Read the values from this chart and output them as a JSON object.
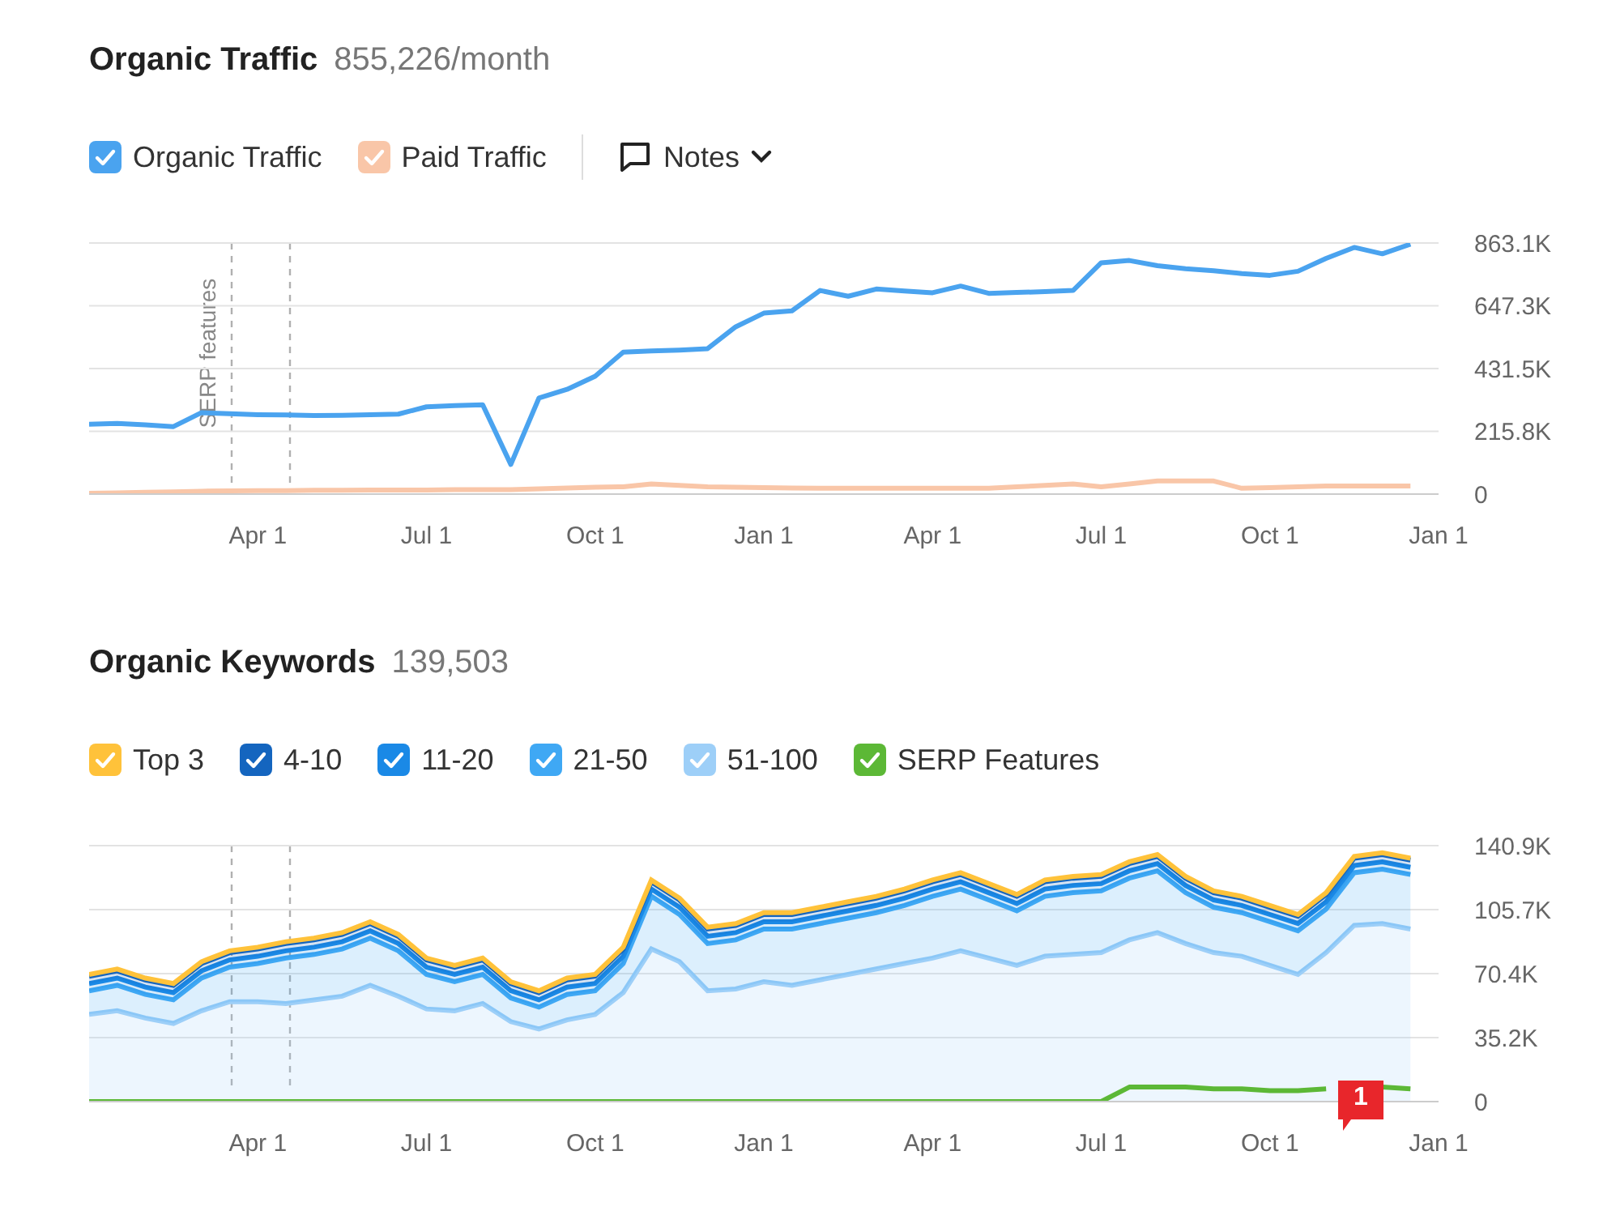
{
  "chart_data": [
    {
      "type": "line",
      "title": "Organic Traffic",
      "subtitle": "855,226/month",
      "legend": "top left",
      "grid": "y",
      "categories": [
        null,
        null,
        null,
        null,
        null,
        null,
        "Apr 1",
        null,
        null,
        null,
        null,
        null,
        "Jul 1",
        null,
        null,
        null,
        null,
        null,
        "Oct 1",
        null,
        null,
        null,
        null,
        null,
        "Jan 1",
        null,
        null,
        null,
        null,
        null,
        "Apr 1",
        null,
        null,
        null,
        null,
        null,
        "Jul 1",
        null,
        null,
        null,
        null,
        null,
        "Oct 1",
        null,
        null,
        null,
        null,
        null,
        "Jan 1"
      ],
      "ylim": [
        0,
        863100
      ],
      "yticks": [
        {
          "value": 0,
          "label": "0"
        },
        {
          "value": 215800,
          "label": "215.8K"
        },
        {
          "value": 431500,
          "label": "431.5K"
        },
        {
          "value": 647300,
          "label": "647.3K"
        },
        {
          "value": 863100,
          "label": "863.1K"
        }
      ],
      "annotations": [
        "SERP features",
        "Notes"
      ],
      "series": [
        {
          "name": "Organic Traffic",
          "color": "#4aa3ef",
          "values": [
            240000,
            243000,
            238000,
            232000,
            280000,
            276000,
            273000,
            272000,
            270000,
            271000,
            273000,
            275000,
            300000,
            304000,
            307000,
            102000,
            330000,
            360000,
            405000,
            488000,
            492000,
            495000,
            500000,
            575000,
            622000,
            630000,
            700000,
            680000,
            705000,
            698000,
            692000,
            715000,
            690000,
            693000,
            696000,
            700000,
            795000,
            803000,
            785000,
            775000,
            768000,
            758000,
            752000,
            766000,
            810000,
            848000,
            826000,
            859000,
            null
          ]
        },
        {
          "name": "Paid Traffic",
          "color": "#f9c6a8",
          "values": [
            3000,
            4000,
            6000,
            8000,
            10000,
            11000,
            12000,
            12000,
            13000,
            13000,
            14000,
            14000,
            14000,
            15000,
            15000,
            15000,
            18000,
            21000,
            24000,
            25000,
            35000,
            30000,
            25000,
            24000,
            22000,
            21000,
            20000,
            20000,
            20000,
            20000,
            20000,
            20000,
            20000,
            25000,
            30000,
            35000,
            25000,
            35000,
            45000,
            45000,
            45000,
            20000,
            22000,
            25000,
            28000,
            28000,
            28000,
            28000,
            null
          ]
        }
      ]
    },
    {
      "type": "area",
      "title": "Organic Keywords",
      "subtitle": "139,503",
      "legend": "top left",
      "grid": "y",
      "stacked": true,
      "categories": [
        null,
        null,
        null,
        null,
        null,
        null,
        "Apr 1",
        null,
        null,
        null,
        null,
        null,
        "Jul 1",
        null,
        null,
        null,
        null,
        null,
        "Oct 1",
        null,
        null,
        null,
        null,
        null,
        "Jan 1",
        null,
        null,
        null,
        null,
        null,
        "Apr 1",
        null,
        null,
        null,
        null,
        null,
        "Jul 1",
        null,
        null,
        null,
        null,
        null,
        "Oct 1",
        null,
        null,
        null,
        null,
        null,
        "Jan 1"
      ],
      "ylim": [
        0,
        140900
      ],
      "yticks": [
        {
          "value": 0,
          "label": "0"
        },
        {
          "value": 35200,
          "label": "35.2K"
        },
        {
          "value": 70400,
          "label": "70.4K"
        },
        {
          "value": 105700,
          "label": "105.7K"
        },
        {
          "value": 140900,
          "label": "140.9K"
        }
      ],
      "annotations": [
        "1"
      ],
      "series": [
        {
          "name": "51-100",
          "color": "#9dcff8",
          "values": [
            48000,
            50000,
            46000,
            43000,
            50000,
            55000,
            55000,
            54000,
            56000,
            58000,
            64000,
            58000,
            51000,
            50000,
            54000,
            44000,
            40000,
            45000,
            48000,
            60000,
            84000,
            77000,
            61000,
            62000,
            66000,
            64000,
            67000,
            70000,
            73000,
            76000,
            79000,
            83000,
            79000,
            75000,
            80000,
            81000,
            82000,
            89000,
            93000,
            87000,
            82000,
            80000,
            75000,
            70000,
            82000,
            97000,
            98000,
            95000,
            null
          ]
        },
        {
          "name": "21-50",
          "color": "#3fa8f4",
          "values": [
            13000,
            14000,
            13000,
            13000,
            18000,
            19000,
            21000,
            25000,
            25000,
            26000,
            26000,
            25000,
            19000,
            16000,
            16000,
            13000,
            12000,
            14000,
            13000,
            16000,
            29000,
            26000,
            26000,
            27000,
            29000,
            31000,
            31000,
            31000,
            31000,
            32000,
            34000,
            34000,
            32000,
            30000,
            33000,
            34000,
            34000,
            34000,
            34000,
            28000,
            25000,
            24000,
            24000,
            24000,
            24000,
            29000,
            30000,
            30000,
            null
          ]
        },
        {
          "name": "11-20",
          "color": "#1a89e6",
          "values": [
            4000,
            4000,
            4000,
            4000,
            4000,
            4000,
            4000,
            4000,
            4000,
            4000,
            4000,
            4000,
            4000,
            4000,
            4000,
            4000,
            4000,
            4000,
            4000,
            4000,
            4000,
            4000,
            4000,
            4000,
            4000,
            4000,
            4000,
            4000,
            4000,
            4000,
            4000,
            4000,
            4000,
            4000,
            4000,
            4000,
            4000,
            4000,
            4000,
            4000,
            4000,
            4000,
            4000,
            4000,
            4000,
            4000,
            4000,
            4000,
            null
          ]
        },
        {
          "name": "4-10",
          "color": "#1465bf",
          "values": [
            4000,
            4000,
            4000,
            4000,
            4000,
            4000,
            4000,
            4000,
            4000,
            4000,
            4000,
            4000,
            4000,
            4000,
            4000,
            4000,
            4000,
            4000,
            4000,
            4000,
            4000,
            4000,
            4000,
            4000,
            4000,
            4000,
            4000,
            4000,
            4000,
            4000,
            4000,
            4000,
            4000,
            4000,
            4000,
            4000,
            4000,
            4000,
            4000,
            4000,
            4000,
            4000,
            4000,
            4000,
            4000,
            4000,
            4000,
            4000,
            null
          ]
        },
        {
          "name": "Top 3",
          "color": "#ffc23a",
          "values": [
            1000,
            1000,
            1000,
            1000,
            1000,
            1000,
            1000,
            1000,
            1000,
            1000,
            1000,
            1000,
            1000,
            1000,
            1000,
            1000,
            1000,
            1000,
            1000,
            1000,
            1000,
            1000,
            1000,
            1000,
            1000,
            1000,
            1000,
            1000,
            1000,
            1000,
            1000,
            1000,
            1000,
            1000,
            1000,
            1000,
            1000,
            1000,
            1000,
            1000,
            1000,
            1000,
            1000,
            1000,
            1000,
            1000,
            1000,
            1000,
            null
          ]
        },
        {
          "name": "SERP Features",
          "type": "line",
          "color": "#5cb836",
          "values": [
            0,
            0,
            0,
            0,
            0,
            0,
            0,
            0,
            0,
            0,
            0,
            0,
            0,
            0,
            0,
            0,
            0,
            0,
            0,
            0,
            0,
            0,
            0,
            0,
            0,
            0,
            0,
            0,
            0,
            0,
            0,
            0,
            0,
            0,
            0,
            0,
            0,
            8000,
            8000,
            8000,
            7000,
            7000,
            6000,
            6000,
            7000,
            null,
            8000,
            7000,
            null
          ]
        }
      ]
    }
  ]
}
